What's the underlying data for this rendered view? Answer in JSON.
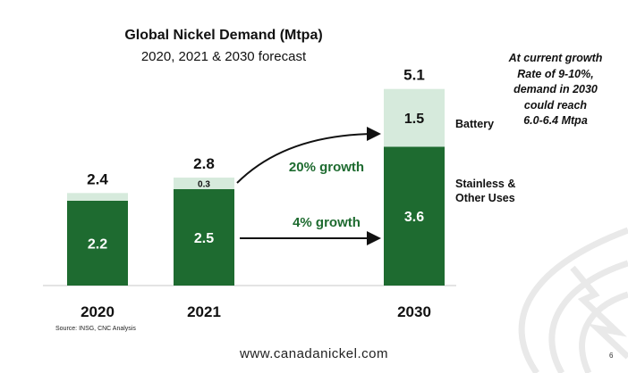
{
  "slide": {
    "title": "Global Nickel Demand (Mtpa)",
    "subtitle": "2020, 2021 & 2030 forecast",
    "annotation_lines": [
      "At current growth",
      "Rate of 9-10%,",
      "demand in 2030",
      "could reach",
      "6.0-6.4 Mtpa"
    ],
    "source": "Source: INSG, CNC Analysis",
    "website": "www.canadanickel.com",
    "page_number": "6"
  },
  "chart_data": {
    "type": "bar",
    "stacked": true,
    "categories": [
      "2020",
      "2021",
      "2030"
    ],
    "series": [
      {
        "name": "Stainless & Other Uses",
        "values": [
          2.2,
          2.5,
          3.6
        ],
        "color": "#1e6b30"
      },
      {
        "name": "Battery",
        "values": [
          0.2,
          0.3,
          1.5
        ],
        "color": "#d6eadc"
      }
    ],
    "segment_labels": [
      [
        "2.2",
        null
      ],
      [
        "2.5",
        "0.3"
      ],
      [
        "3.6",
        "1.5"
      ]
    ],
    "totals": [
      "2.4",
      "2.8",
      "5.1"
    ],
    "legend_labels": {
      "battery": "Battery",
      "stainless_lines": [
        "Stainless &",
        "Other Uses"
      ]
    },
    "growth_annotations": [
      {
        "text": "20% growth",
        "color": "#1e6b30"
      },
      {
        "text": "4% growth",
        "color": "#1e6b30"
      }
    ],
    "colors": {
      "dark_green": "#1e6b30",
      "light_green": "#d6eadc",
      "axis": "#c8c8c8",
      "watermark": "#e9e9e9"
    }
  }
}
